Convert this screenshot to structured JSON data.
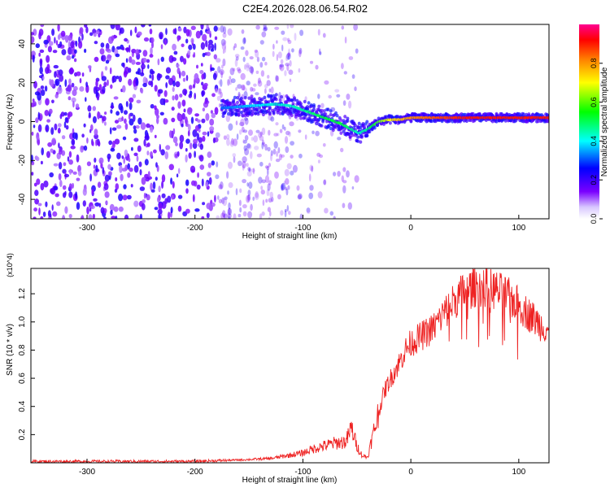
{
  "figure": {
    "title": "C2E4.2026.028.06.54.R02"
  },
  "chart_data": [
    {
      "type": "heatmap",
      "panel": "spectrogram",
      "xlabel": "Height of straight line (km)",
      "ylabel": "Frequency (Hz)",
      "xlim": [
        -352,
        128
      ],
      "ylim": [
        -50,
        50
      ],
      "xticks": [
        -300,
        -200,
        -100,
        0,
        100
      ],
      "yticks": [
        -40,
        -20,
        0,
        20,
        40
      ],
      "colorbar": {
        "label": "Normalized spectral amplitude",
        "range": [
          0,
          1
        ],
        "ticks": [
          0.0,
          0.2,
          0.4,
          0.6,
          0.8
        ],
        "colormap": [
          "#ffffff",
          "#7a00ff",
          "#0000ff",
          "#00ffff",
          "#00ff00",
          "#ffff00",
          "#ff8000",
          "#ff0000",
          "#ff00a0"
        ]
      },
      "signal_track": {
        "x": [
          -175,
          -150,
          -125,
          -110,
          -95,
          -80,
          -65,
          -55,
          -48,
          -40,
          -30,
          -20,
          -10,
          0,
          20,
          50,
          80,
          100,
          128
        ],
        "frequency": [
          7,
          8,
          9,
          8,
          5,
          2,
          -1,
          -4,
          -6,
          -4,
          0,
          1,
          1,
          2,
          2,
          2,
          2,
          2,
          2
        ],
        "amplitude": [
          0.35,
          0.4,
          0.45,
          0.45,
          0.5,
          0.55,
          0.55,
          0.5,
          0.45,
          0.5,
          0.6,
          0.7,
          0.75,
          0.8,
          0.85,
          0.9,
          0.9,
          0.9,
          0.9
        ]
      },
      "noise_region": [
        -352,
        -110
      ]
    },
    {
      "type": "line",
      "panel": "snr",
      "xlabel": "Height of straight line (km)",
      "ylabel": "SNR (10 * v/v)",
      "y_multiplier": "(x10^4)",
      "xlim": [
        -352,
        128
      ],
      "ylim": [
        0,
        1.38
      ],
      "xticks": [
        -300,
        -200,
        -100,
        0,
        100
      ],
      "yticks": [
        0.2,
        0.4,
        0.6,
        0.8,
        1.0,
        1.2
      ],
      "line_color": "#ee2222",
      "series": [
        {
          "x": [
            -352,
            -300,
            -250,
            -200,
            -160,
            -130,
            -115,
            -100,
            -90,
            -80,
            -70,
            -60,
            -55,
            -50,
            -45,
            -40,
            -35,
            -30,
            -25,
            -20,
            -15,
            -10,
            -5,
            0,
            10,
            20,
            30,
            40,
            50,
            60,
            70,
            80,
            90,
            100,
            110,
            120,
            128
          ],
          "values": [
            0.01,
            0.01,
            0.01,
            0.01,
            0.02,
            0.03,
            0.05,
            0.07,
            0.1,
            0.12,
            0.14,
            0.15,
            0.25,
            0.12,
            0.05,
            0.04,
            0.2,
            0.35,
            0.5,
            0.58,
            0.65,
            0.72,
            0.8,
            0.85,
            0.9,
            0.95,
            1.05,
            1.15,
            1.22,
            1.25,
            1.25,
            1.22,
            1.18,
            1.12,
            1.05,
            0.98,
            0.95
          ]
        }
      ]
    }
  ]
}
